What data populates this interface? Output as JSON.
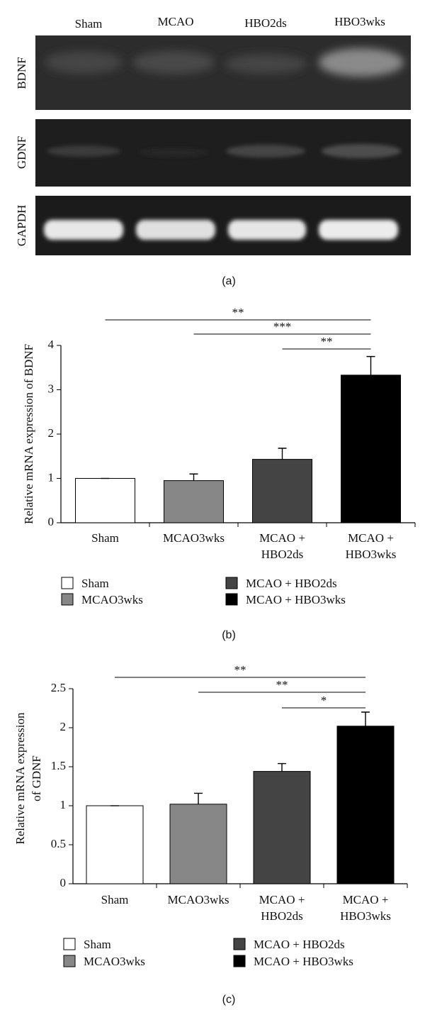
{
  "panel_a": {
    "lanes": [
      "Sham",
      "MCAO",
      "HBO2ds",
      "HBO3wks"
    ],
    "rows": [
      "BDNF",
      "GDNF",
      "GAPDH"
    ],
    "caption": "(a)"
  },
  "chart_data": [
    {
      "type": "bar",
      "caption": "(b)",
      "ylabel": "Relative mRNA expression of BDNF",
      "categories": [
        "Sham",
        "MCAO3wks",
        "MCAO +\nHBO2ds",
        "MCAO +\nHBO3wks"
      ],
      "values": [
        1.0,
        0.95,
        1.43,
        3.33
      ],
      "errors": [
        0,
        0.15,
        0.25,
        0.42
      ],
      "colors": [
        "#ffffff",
        "#878787",
        "#444444",
        "#000000"
      ],
      "legend": [
        "Sham",
        "MCAO3wks",
        "MCAO + HBO2ds",
        "MCAO + HBO3wks"
      ],
      "ylim": [
        0,
        4
      ],
      "yticks": [
        0,
        1,
        2,
        3,
        4
      ],
      "significance": [
        {
          "from": 0,
          "to": 3,
          "label": "**"
        },
        {
          "from": 1,
          "to": 3,
          "label": "***"
        },
        {
          "from": 2,
          "to": 3,
          "label": "**"
        }
      ]
    },
    {
      "type": "bar",
      "caption": "(c)",
      "ylabel": "Relative mRNA expression\nof GDNF",
      "categories": [
        "Sham",
        "MCAO3wks",
        "MCAO +\nHBO2ds",
        "MCAO +\nHBO3wks"
      ],
      "values": [
        1.0,
        1.02,
        1.44,
        2.02
      ],
      "errors": [
        0,
        0.14,
        0.1,
        0.18
      ],
      "colors": [
        "#ffffff",
        "#878787",
        "#444444",
        "#000000"
      ],
      "legend": [
        "Sham",
        "MCAO3wks",
        "MCAO + HBO2ds",
        "MCAO + HBO3wks"
      ],
      "ylim": [
        0,
        2.5
      ],
      "yticks": [
        0,
        0.5,
        1,
        1.5,
        2,
        2.5
      ],
      "significance": [
        {
          "from": 0,
          "to": 3,
          "label": "**"
        },
        {
          "from": 1,
          "to": 3,
          "label": "**"
        },
        {
          "from": 2,
          "to": 3,
          "label": "*"
        }
      ]
    }
  ]
}
